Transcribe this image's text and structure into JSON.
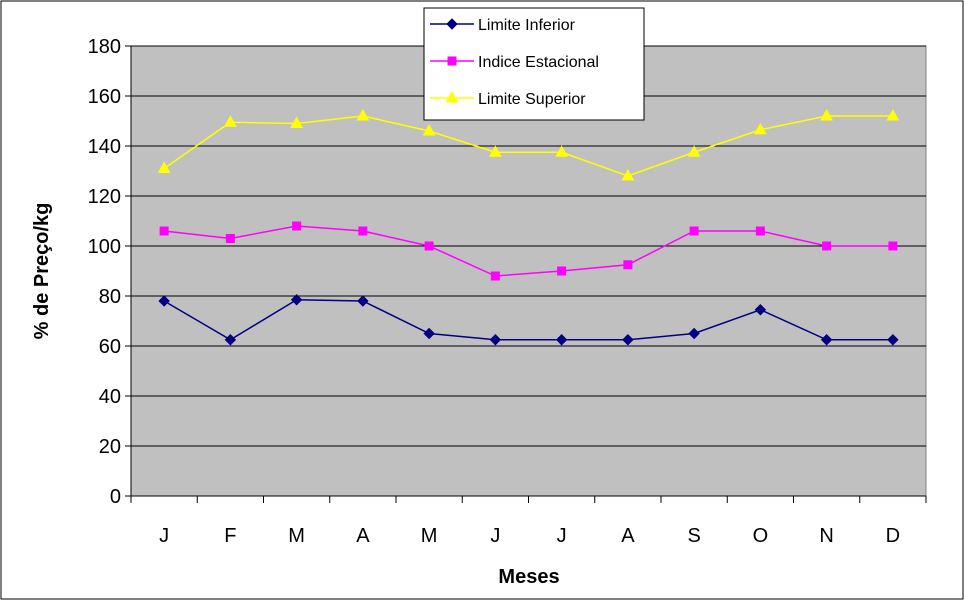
{
  "chart_data": {
    "type": "line",
    "categories": [
      "J",
      "F",
      "M",
      "A",
      "M",
      "J",
      "J",
      "A",
      "S",
      "O",
      "N",
      "D"
    ],
    "series": [
      {
        "name": "Limite Inferior",
        "values": [
          78,
          62.5,
          78.5,
          78,
          65,
          62.5,
          62.5,
          62.5,
          65,
          74.5,
          62.5,
          62.5
        ],
        "color": "#000080",
        "marker": "diamond"
      },
      {
        "name": "Indice Estacional",
        "values": [
          106,
          103,
          108,
          106,
          100,
          88,
          90,
          92.5,
          106,
          106,
          100,
          100
        ],
        "color": "#FF00FF",
        "marker": "square"
      },
      {
        "name": "Limite Superior",
        "values": [
          131,
          149.5,
          149,
          152,
          146,
          137.5,
          137.5,
          128,
          137.5,
          146.5,
          152,
          152
        ],
        "color": "#FFFF00",
        "marker": "triangle"
      }
    ],
    "xlabel": "Meses",
    "ylabel": "% de Preço/kg",
    "ylim": [
      0,
      180
    ],
    "yticks": [
      0,
      20,
      40,
      60,
      80,
      100,
      120,
      140,
      160,
      180
    ],
    "grid": true,
    "legend_position": "top-center",
    "plot_background": "#C0C0C0"
  }
}
